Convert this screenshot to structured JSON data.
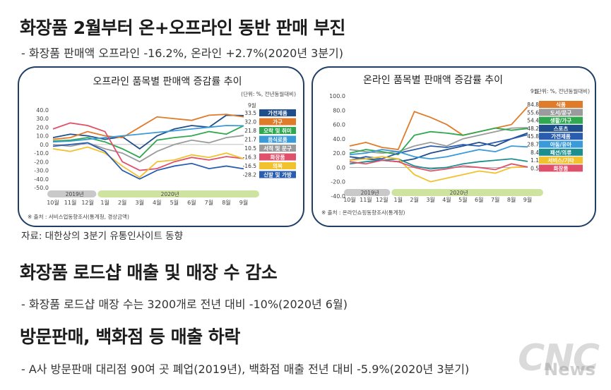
{
  "headline1": "화장품 2월부터 온+오프라인 동반 판매 부진",
  "sub1": "- 화장품 판매액 오프라인 -16.2%, 온라인 +2.7%(2020년 3분기)",
  "source_line": "자료: 대한상의 3분기 유통인사이트 동향",
  "headline2": "화장품 로드샵 매출 및 매장 수 감소",
  "sub2": "- 화장품 로드샵 매장 수는 3200개로 전년 대비 -10%(2020년 6월)",
  "headline3": "방문판매, 백화점 등 매출 하락",
  "sub3": "- A사 방문판매 대리점 90여 곳 폐업(2019년), 백화점 매출 전년 대비 -5.9%(2020년 3분기)",
  "watermark": "CNC",
  "watermark_news": "News",
  "chart_data": [
    {
      "type": "line",
      "title": "오프라인 품목별 판매액 증감률 추이",
      "unit_note": "(단위: %, 전년동월대비)",
      "source": "※ 출처 : 서비스업동향조사(통계청, 경상금액)",
      "year_labels": [
        "2019년",
        "2020년"
      ],
      "categories": [
        "10월",
        "11월",
        "12월",
        "1월",
        "2월",
        "3월",
        "4월",
        "5월",
        "6월",
        "7월",
        "8월",
        "9월"
      ],
      "current_month_label": "9월",
      "ylim": [
        -50,
        40
      ],
      "yticks": [
        40.0,
        30.0,
        20.0,
        10.0,
        0.0,
        -10.0,
        -20.0,
        -30.0,
        -40.0,
        -50.0
      ],
      "series": [
        {
          "name": "가전제품",
          "color": "#1f4e8c",
          "end_label": "33.5",
          "values": [
            8,
            12,
            10,
            6,
            9,
            -5,
            10,
            18,
            22,
            20,
            34,
            33.5
          ]
        },
        {
          "name": "가구",
          "color": "#e07b2a",
          "end_label": "32.0",
          "values": [
            6,
            8,
            15,
            10,
            8,
            20,
            32,
            30,
            28,
            34,
            35,
            32
          ]
        },
        {
          "name": "오락 및 취미",
          "color": "#2fa84f",
          "end_label": "21.8",
          "values": [
            4,
            5,
            8,
            3,
            -5,
            -15,
            5,
            8,
            10,
            15,
            12,
            21.8
          ]
        },
        {
          "name": "음식료품",
          "color": "#3a9bd8",
          "end_label": "21.7",
          "values": [
            3,
            4,
            6,
            8,
            10,
            12,
            14,
            16,
            18,
            20,
            22,
            21.7
          ]
        },
        {
          "name": "서적 및 문구",
          "color": "#9b9b9b",
          "end_label": "10.5",
          "values": [
            0,
            -2,
            2,
            -5,
            -10,
            -20,
            -8,
            0,
            5,
            2,
            8,
            10.5
          ]
        },
        {
          "name": "화장품",
          "color": "#e0506b",
          "end_label": "-16.3",
          "values": [
            18,
            25,
            22,
            15,
            -20,
            -30,
            -28,
            -20,
            -15,
            -18,
            -14,
            -16.3
          ]
        },
        {
          "name": "의복",
          "color": "#f2c12e",
          "end_label": "-16.5",
          "values": [
            -5,
            -8,
            -3,
            -10,
            -25,
            -38,
            -20,
            -18,
            -12,
            -15,
            -10,
            -16.5
          ]
        },
        {
          "name": "신발 및 가방",
          "color": "#2a5db0",
          "end_label": "-28.2",
          "values": [
            -2,
            0,
            2,
            -8,
            -30,
            -40,
            -30,
            -25,
            -22,
            -28,
            -25,
            -28.2
          ]
        }
      ]
    },
    {
      "type": "line",
      "title": "온라인 품목별 판매액 증감률 추이",
      "unit_note": "(단위: %, 전년동월대비)",
      "source": "※ 출처 : 온라인쇼핑동향조사(통계청)",
      "year_labels": [
        "2019년",
        "2020년"
      ],
      "categories": [
        "10월",
        "11월",
        "12월",
        "1월",
        "2월",
        "3월",
        "4월",
        "5월",
        "6월",
        "7월",
        "8월",
        "9월"
      ],
      "current_month_label": "9월",
      "ylim": [
        -40,
        100
      ],
      "yticks": [
        100.0,
        80.0,
        60.0,
        40.0,
        20.0,
        0.0,
        -20.0,
        -40.0
      ],
      "series": [
        {
          "name": "식품",
          "color": "#e07b2a",
          "end_label": "84.8",
          "values": [
            30,
            35,
            28,
            25,
            78,
            70,
            60,
            45,
            50,
            55,
            60,
            84.8
          ]
        },
        {
          "name": "도서/문구",
          "color": "#9b9b9b",
          "end_label": "55.6",
          "values": [
            25,
            22,
            20,
            22,
            30,
            35,
            30,
            40,
            45,
            50,
            55,
            55.6
          ]
        },
        {
          "name": "생활/가구",
          "color": "#2fa84f",
          "end_label": "54.4",
          "values": [
            20,
            25,
            22,
            18,
            45,
            50,
            48,
            45,
            50,
            55,
            52,
            54.4
          ]
        },
        {
          "name": "스포츠",
          "color": "#1f4e8c",
          "end_label": "48.2",
          "values": [
            15,
            12,
            10,
            8,
            12,
            20,
            25,
            30,
            35,
            30,
            40,
            48.2
          ]
        },
        {
          "name": "가전제품",
          "color": "#2a5db0",
          "end_label": "45.8",
          "values": [
            10,
            15,
            12,
            20,
            25,
            30,
            28,
            32,
            30,
            35,
            40,
            45.8
          ]
        },
        {
          "name": "아동/유아",
          "color": "#3a9bd8",
          "end_label": "28.7",
          "values": [
            18,
            20,
            25,
            22,
            15,
            12,
            15,
            20,
            25,
            22,
            30,
            28.7
          ]
        },
        {
          "name": "패션/의류",
          "color": "#1b8f8f",
          "end_label": "8.4",
          "values": [
            5,
            8,
            10,
            12,
            2,
            -2,
            0,
            5,
            8,
            10,
            12,
            8.4
          ]
        },
        {
          "name": "서비스/기타",
          "color": "#f2c12e",
          "end_label": "1.1",
          "values": [
            10,
            12,
            15,
            12,
            -10,
            -20,
            -15,
            -10,
            -5,
            -8,
            0,
            1.1
          ]
        },
        {
          "name": "화장품",
          "color": "#e0506b",
          "end_label": "0.5",
          "values": [
            8,
            5,
            10,
            8,
            0,
            -5,
            -2,
            2,
            0,
            -3,
            5,
            0.5
          ]
        }
      ]
    }
  ]
}
